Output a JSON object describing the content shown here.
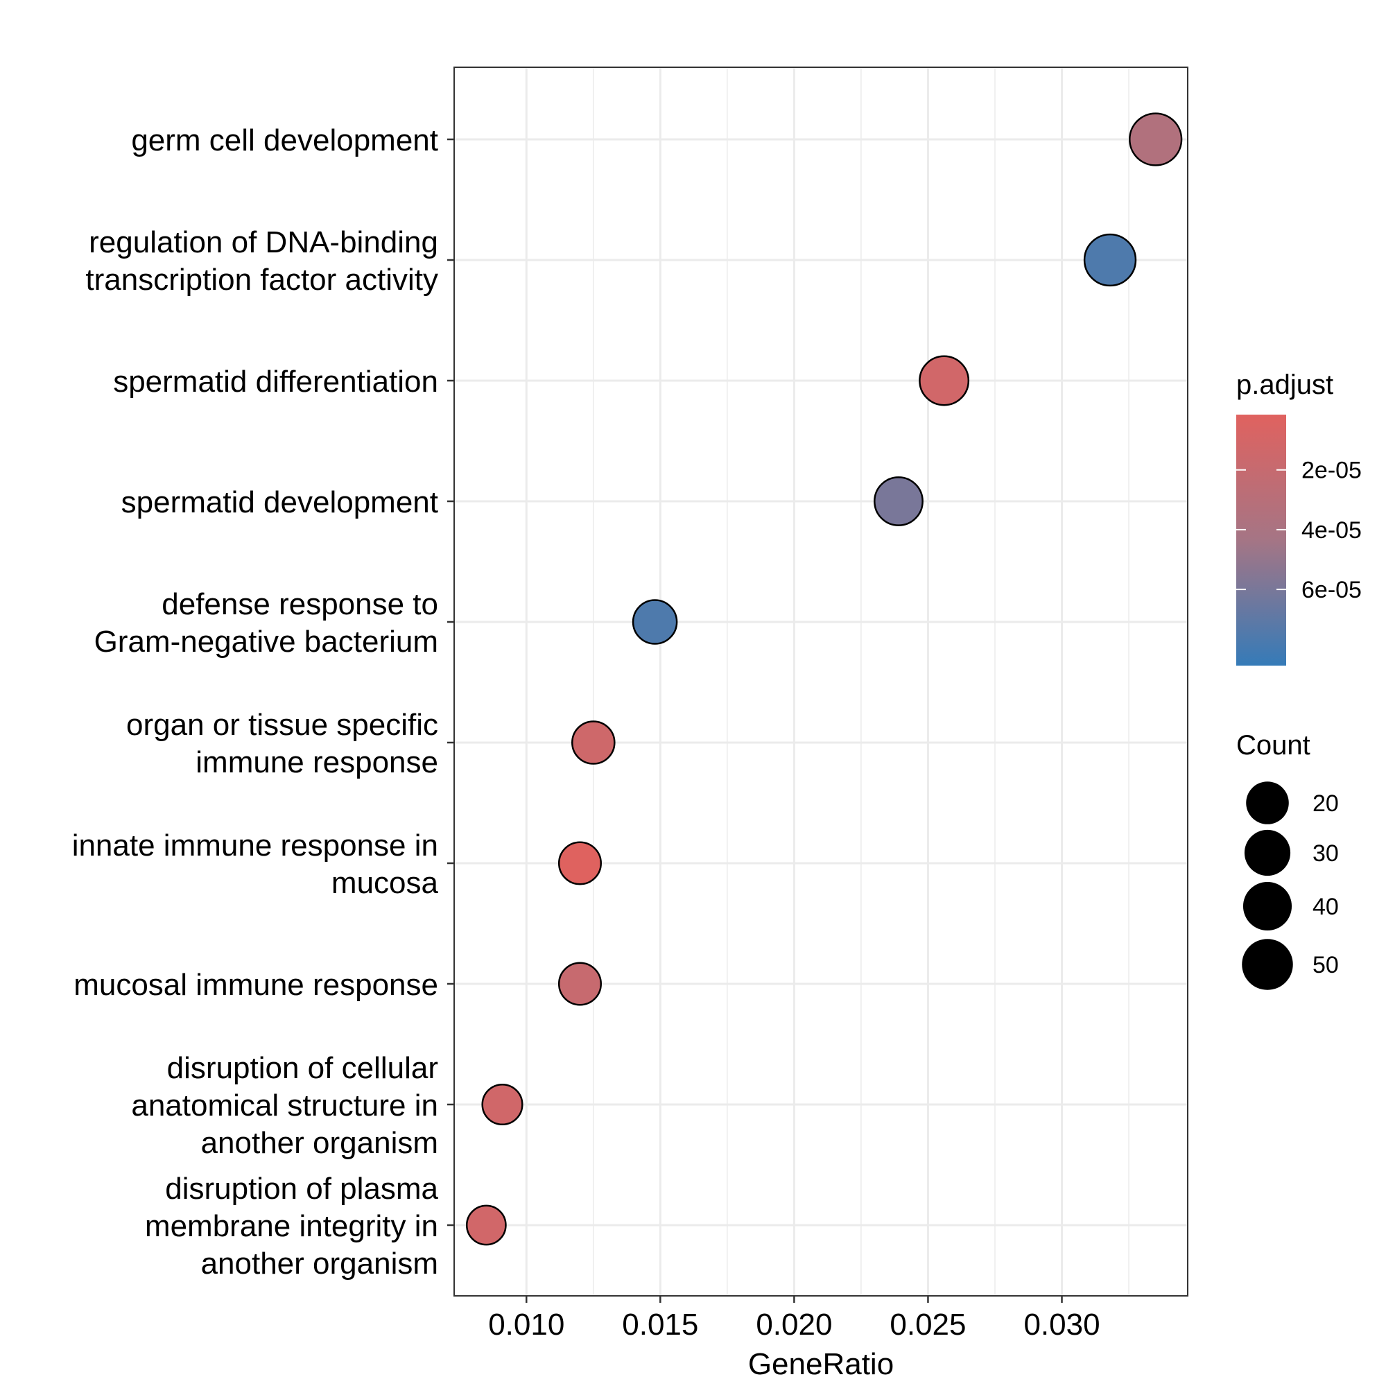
{
  "chart_data": {
    "type": "scatter",
    "xlabel": "GeneRatio",
    "xlim": [
      0.0073,
      0.0347
    ],
    "x_ticks": [
      "0.010",
      "0.015",
      "0.020",
      "0.025",
      "0.030"
    ],
    "x_tick_values": [
      0.01,
      0.015,
      0.02,
      0.025,
      0.03
    ],
    "grid": true,
    "categories": [
      [
        "germ cell development"
      ],
      [
        "regulation of DNA-binding",
        "transcription factor activity"
      ],
      [
        "spermatid differentiation"
      ],
      [
        "spermatid development"
      ],
      [
        "defense response to",
        "Gram-negative bacterium"
      ],
      [
        "organ or tissue specific",
        "immune response"
      ],
      [
        "innate immune response in",
        "mucosa"
      ],
      [
        "mucosal immune response"
      ],
      [
        "disruption of cellular",
        "anatomical structure in",
        "another organism"
      ],
      [
        "disruption of plasma",
        "membrane integrity in",
        "another organism"
      ]
    ],
    "points": [
      {
        "x": 0.0335,
        "count": 54,
        "padjust": 3.5e-05
      },
      {
        "x": 0.0318,
        "count": 51,
        "padjust": 7.6e-05
      },
      {
        "x": 0.0256,
        "count": 41,
        "padjust": 1.2e-05
      },
      {
        "x": 0.0239,
        "count": 38,
        "padjust": 6e-05
      },
      {
        "x": 0.0148,
        "count": 23,
        "padjust": 7.6e-05
      },
      {
        "x": 0.0125,
        "count": 19,
        "padjust": 1.4e-05
      },
      {
        "x": 0.012,
        "count": 18,
        "padjust": 2e-06
      },
      {
        "x": 0.012,
        "count": 18,
        "padjust": 1.9e-05
      },
      {
        "x": 0.0091,
        "count": 13,
        "padjust": 1.3e-05
      },
      {
        "x": 0.0085,
        "count": 11,
        "padjust": 1.2e-05
      }
    ],
    "color_legend": {
      "title": "p.adjust",
      "low_color": "#e0625f",
      "high_color": "#357bb8",
      "range": [
        1.5e-06,
        8.55e-05
      ],
      "breaks": [
        2e-05,
        4e-05,
        6e-05
      ],
      "labels": [
        "2e-05",
        "4e-05",
        "6e-05"
      ]
    },
    "size_legend": {
      "title": "Count",
      "breaks": [
        20,
        30,
        40,
        50
      ],
      "labels": [
        "20",
        "30",
        "40",
        "50"
      ]
    }
  }
}
